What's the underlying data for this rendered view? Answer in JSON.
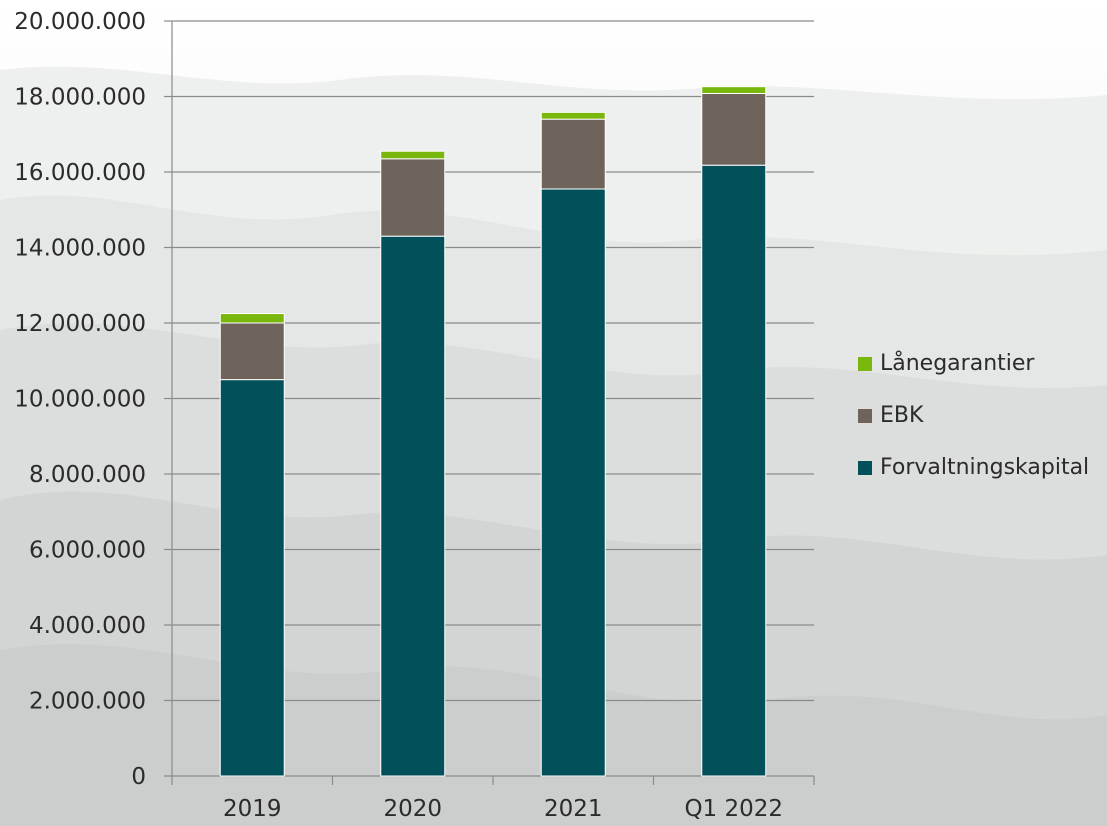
{
  "chart_data": {
    "type": "bar",
    "stacked": true,
    "categories": [
      "2019",
      "2020",
      "2021",
      "Q1 2022"
    ],
    "series": [
      {
        "name": "Forvaltningskapital",
        "color": "#02505a",
        "values": [
          10500000,
          14300000,
          15550000,
          16180000
        ]
      },
      {
        "name": "EBK",
        "color": "#6f645b",
        "values": [
          1500000,
          2050000,
          1850000,
          1900000
        ]
      },
      {
        "name": "Lånegarantier",
        "color": "#79b70d",
        "values": [
          250000,
          200000,
          180000,
          180000
        ]
      }
    ],
    "ylim": [
      0,
      20000000
    ],
    "yticks": [
      0,
      2000000,
      4000000,
      6000000,
      8000000,
      10000000,
      12000000,
      14000000,
      16000000,
      18000000,
      20000000
    ],
    "ytick_labels": [
      "0",
      "2.000.000",
      "4.000.000",
      "6.000.000",
      "8.000.000",
      "10.000.000",
      "12.000.000",
      "14.000.000",
      "16.000.000",
      "18.000.000",
      "20.000.000"
    ],
    "legend_order": [
      "Lånegarantier",
      "EBK",
      "Forvaltningskapital"
    ],
    "legend_placement": "right",
    "grid": true,
    "title": "",
    "xlabel": "",
    "ylabel": ""
  },
  "colors": {
    "gridline": "#8a8a8a",
    "axis": "#8a8a8a",
    "text": "#2b2b2b"
  }
}
